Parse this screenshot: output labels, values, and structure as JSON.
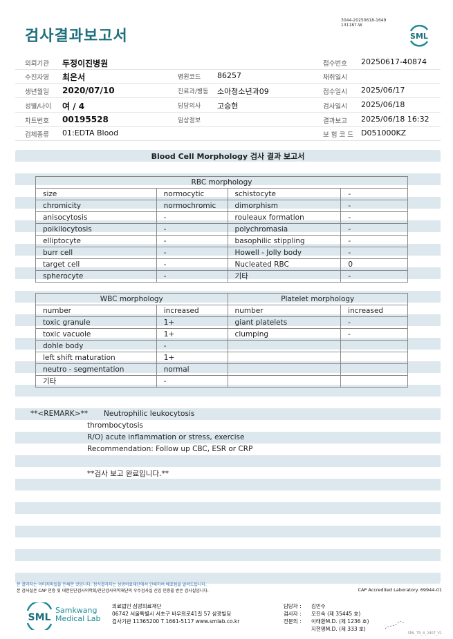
{
  "header": {
    "title": "검사결과보고서",
    "doc_id_line1": "3044-20250618-1649",
    "doc_id_line2": "131187-W",
    "logo_text": "SML"
  },
  "info": [
    [
      {
        "label": "의뢰기관",
        "value": "두정이진병원",
        "bold": true
      },
      {
        "label": "",
        "value": ""
      },
      {
        "label": "접수번호",
        "value": "20250617-40874"
      }
    ],
    [
      {
        "label": "수진자명",
        "value": "최은서",
        "bold": true
      },
      {
        "label": "병원코드",
        "value": "86257"
      },
      {
        "label": "채취일시",
        "value": ""
      }
    ],
    [
      {
        "label": "생년월일",
        "value": "2020/07/10",
        "bold": true
      },
      {
        "label": "진료과/병동",
        "value": "소아청소년과09"
      },
      {
        "label": "접수일시",
        "value": "2025/06/17"
      }
    ],
    [
      {
        "label": "성별/나이",
        "value": "여 / 4",
        "bold": true
      },
      {
        "label": "담당의사",
        "value": "고승현"
      },
      {
        "label": "검사일시",
        "value": "2025/06/18"
      }
    ],
    [
      {
        "label": "차트번호",
        "value": "00195528",
        "bold": true
      },
      {
        "label": "임상정보",
        "value": ""
      },
      {
        "label": "결과보고",
        "value": "2025/06/18 16:32"
      }
    ],
    [
      {
        "label": "검체종류",
        "value": "01:EDTA Blood"
      },
      {
        "label": "",
        "value": ""
      },
      {
        "label": "보 험 코 드",
        "value": "D051000KZ"
      }
    ]
  ],
  "section_title": "Blood Cell Morphology 검사 결과 보고서",
  "rbc": {
    "header": "RBC morphology",
    "rows": [
      [
        "size",
        "normocytic",
        "schistocyte",
        "-"
      ],
      [
        "chromicity",
        "normochromic",
        "dimorphism",
        "-"
      ],
      [
        "anisocytosis",
        "-",
        "rouleaux formation",
        "-"
      ],
      [
        "poikilocytosis",
        "-",
        "polychromasia",
        "-"
      ],
      [
        "elliptocyte",
        "-",
        "basophilic stippling",
        "-"
      ],
      [
        "burr cell",
        "-",
        "Howell - Jolly body",
        "-"
      ],
      [
        "target cell",
        "-",
        "Nucleated RBC",
        "0"
      ],
      [
        "spherocyte",
        "-",
        "기타",
        "-"
      ]
    ]
  },
  "wbc": {
    "header": "WBC morphology",
    "platelet_header": "Platelet morphology",
    "rows": [
      [
        "number",
        "increased",
        "number",
        "increased"
      ],
      [
        "toxic granule",
        "1+",
        "giant platelets",
        "-"
      ],
      [
        "toxic vacuole",
        "1+",
        "clumping",
        "-"
      ],
      [
        "dohle body",
        "-",
        "",
        ""
      ],
      [
        "left shift maturation",
        "1+",
        "",
        ""
      ],
      [
        "neutro - segmentation",
        "normal",
        "",
        ""
      ],
      [
        "기타",
        "-",
        "",
        ""
      ]
    ]
  },
  "remark": {
    "label": "**<REMARK>**",
    "lines": [
      "Neutrophilic leukocytosis",
      "thrombocytosis",
      "R/O) acute inflammation or  stress, exercise",
      "Recommendation: Follow up CBC, ESR or CRP",
      "",
      "**검사 보고 완료입니다.**"
    ]
  },
  "footer": {
    "notice1": "본 결과지는 이미지파일을 인쇄한 것입니다. 정식결과지는 삼광의료재단에서 인쇄하여 배포됨을 알려드립니다.",
    "notice2": "본 검사실은 CAP 인증 및 대한진단검사의학회/진단검사의학재단의 우수검사실 신임 인증을 받은 검사실입니다.",
    "cap": "CAP Accredited Laboratory. 69944-01",
    "logo_text": "SML",
    "lab_name1": "Samkwang",
    "lab_name2": "Medical Lab",
    "org": "의료법인 삼광의료재단",
    "address": "06742 서울특별시 서초구 바우뫼로41길 57 삼광빌딩",
    "contact": "검사기관 11365200 T 1661-5117 www.smlab.co.kr",
    "staff": [
      [
        "담당자 :",
        "김민수"
      ],
      [
        "검사자 :",
        "오진숙 (제 35445 호)"
      ],
      [
        "전문의 :",
        "이태환M.D. (제 1236 호)"
      ],
      [
        "",
        "지현영M.D. (제 333 호)"
      ]
    ],
    "version": "SML_TR_A_2407_V1"
  },
  "colors": {
    "accent": "#1e6f7c",
    "stripe": "#dce8ee"
  }
}
